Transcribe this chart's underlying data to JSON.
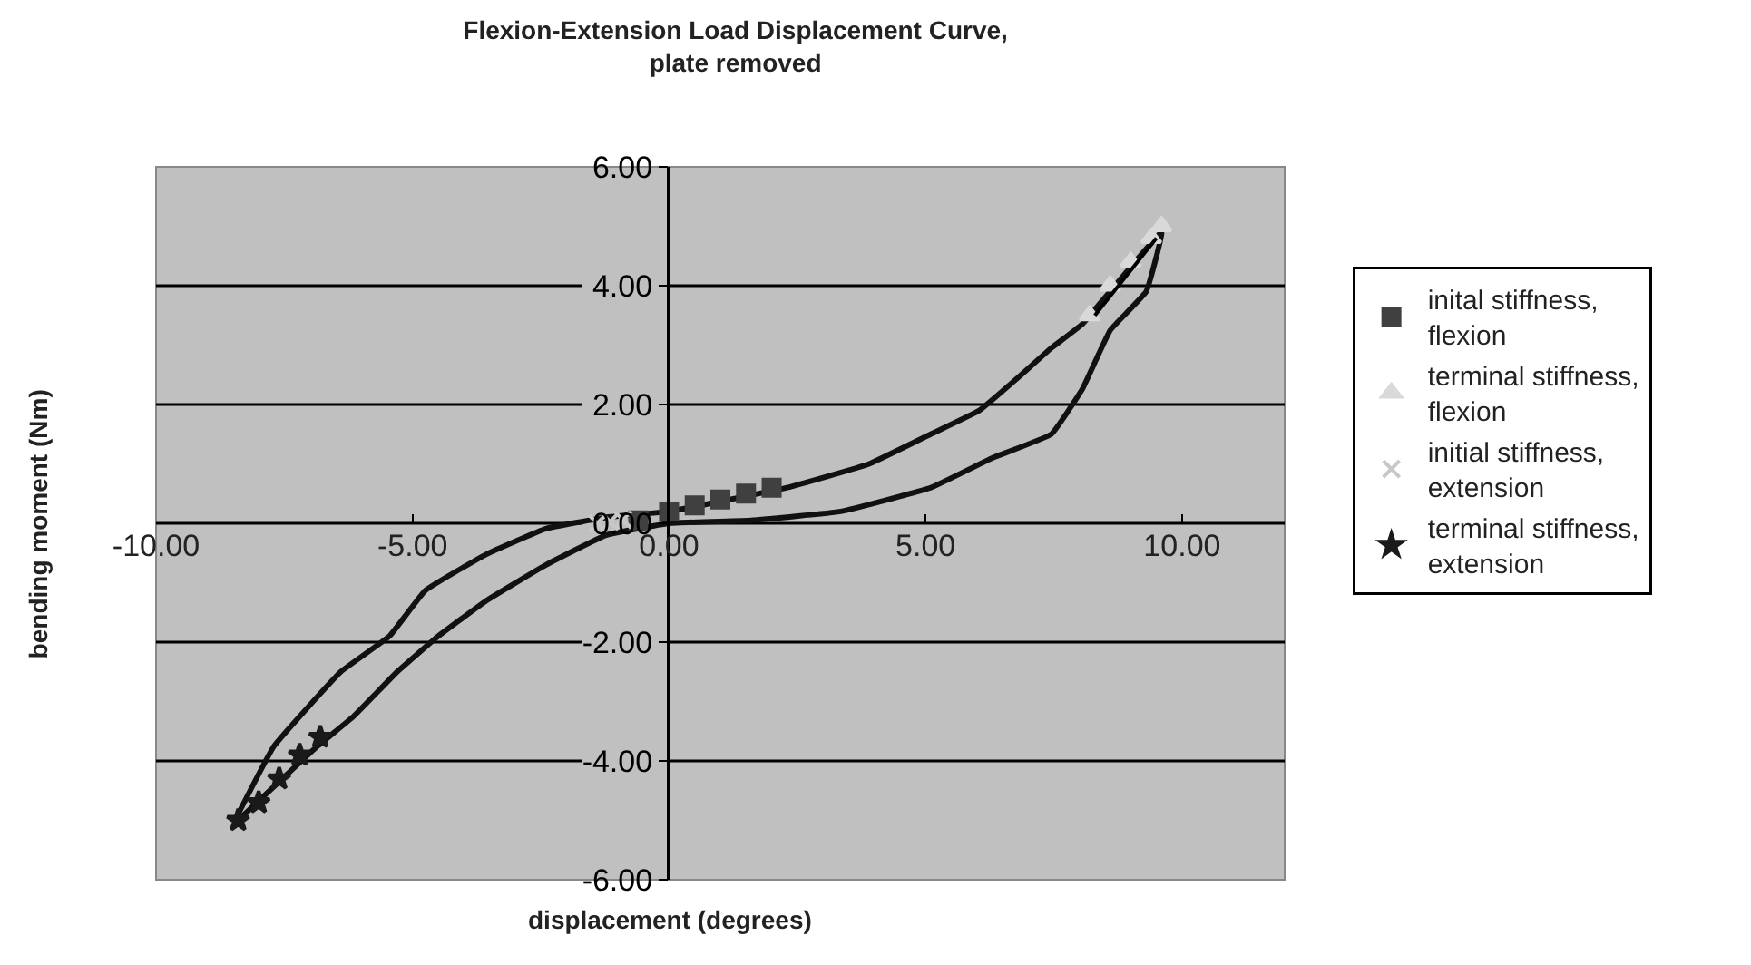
{
  "chart_data": {
    "type": "scatter",
    "title": "Flexion-Extension Load Displacement Curve,\nplate removed",
    "xlabel": "displacement (degrees)",
    "ylabel": "bending moment (Nm)",
    "xlim": [
      -10,
      12
    ],
    "xticks": [
      {
        "value": -10,
        "label": "-10.00"
      },
      {
        "value": -5,
        "label": "-5.00"
      },
      {
        "value": 0,
        "label": "0.00"
      },
      {
        "value": 5,
        "label": "5.00"
      },
      {
        "value": 10,
        "label": "10.00"
      }
    ],
    "ylim": [
      -6,
      6
    ],
    "yticks": [
      {
        "value": -6,
        "label": "-6.00"
      },
      {
        "value": -4,
        "label": "-4.00"
      },
      {
        "value": -2,
        "label": "-2.00"
      },
      {
        "value": 0,
        "label": "0.00"
      },
      {
        "value": 2,
        "label": "2.00"
      },
      {
        "value": 4,
        "label": "4.00"
      },
      {
        "value": 6,
        "label": "6.00"
      }
    ],
    "grid": "y",
    "legend": "right",
    "series": [
      {
        "type": "line",
        "color": "#111111",
        "marker": "none",
        "x": [
          -8.45,
          -7.7,
          -6.4,
          -5.45,
          -4.75,
          -3.56,
          -2.4,
          -1.23,
          0,
          2.3,
          3.9,
          5.1,
          6.05,
          6.8,
          7.45,
          8.05,
          9.6,
          9.3,
          8.6,
          8.05,
          7.45,
          6.3,
          5.1,
          3.35,
          1.6,
          0,
          -1.23,
          -2.4,
          -3.56,
          -4.5,
          -5.3,
          -6.15,
          -6.85,
          -8.4
        ],
        "values": [
          -4.98,
          -3.75,
          -2.5,
          -1.9,
          -1.13,
          -0.52,
          -0.09,
          0.1,
          0.2,
          0.6,
          1.0,
          1.5,
          1.9,
          2.45,
          2.95,
          3.35,
          4.9,
          3.9,
          3.25,
          2.25,
          1.5,
          1.1,
          0.6,
          0.2,
          0.05,
          0,
          -0.2,
          -0.7,
          -1.3,
          -1.9,
          -2.5,
          -3.25,
          -3.75,
          -5.0
        ]
      },
      {
        "name": "inital stiffness,\nflexion",
        "color": "#404040",
        "marker": "square",
        "x": [
          -0.6,
          0,
          0.5,
          1,
          1.5,
          2
        ],
        "values": [
          0.05,
          0.2,
          0.3,
          0.4,
          0.5,
          0.6
        ]
      },
      {
        "name": "terminal stiffness,\nflexion",
        "color": "#d9d9d9",
        "marker": "triangle",
        "x": [
          8.2,
          8.6,
          9.0,
          9.4,
          9.6
        ],
        "values": [
          3.5,
          4.0,
          4.4,
          4.8,
          5.0
        ]
      },
      {
        "name": "initial stiffness,\nextension",
        "color": "#c8c8c8",
        "marker": "cross",
        "x": [
          -1.4,
          -1.15,
          -0.9
        ],
        "values": [
          0.0,
          0.03,
          0.06
        ]
      },
      {
        "name": "terminal stiffness,\nextension",
        "color": "#1a1a1a",
        "marker": "star",
        "x": [
          -8.4,
          -8,
          -7.6,
          -7.2,
          -6.8
        ],
        "values": [
          -5.0,
          -4.7,
          -4.3,
          -3.9,
          -3.6
        ]
      },
      {
        "type": "line",
        "color": "#000000",
        "marker": "none",
        "x": [
          8.3,
          9.5
        ],
        "values": [
          3.5,
          4.8
        ]
      }
    ]
  }
}
